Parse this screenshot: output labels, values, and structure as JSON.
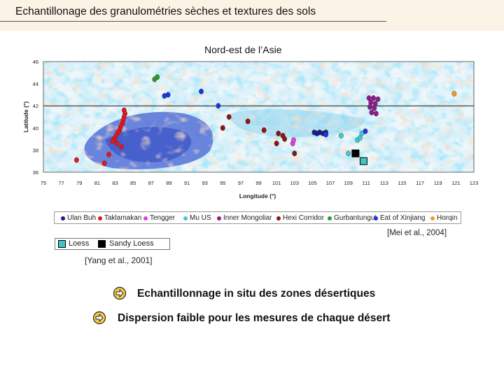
{
  "slide": {
    "title": "Echantillonage des granulométries sèches et textures des sols",
    "map_title": "Nord-est de l’Asie",
    "citation_mei": "[Mei et al., 2004]",
    "citation_yang": "[Yang et al., 2001]",
    "bullets": [
      "Echantillonnage in situ des zones désertiques",
      "Dispersion faible pour les mesures de chaque désert"
    ]
  },
  "chart_data": {
    "type": "scatter",
    "title": "Nord-est de l’Asie",
    "xlabel": "Longitude (°)",
    "ylabel": "Latitude (°)",
    "xlim": [
      75,
      123
    ],
    "ylim": [
      36,
      46
    ],
    "xticks": [
      "75",
      "77",
      "79",
      "81",
      "83",
      "85",
      "87",
      "89",
      "91",
      "93",
      "95",
      "97",
      "99",
      "101",
      "103",
      "105",
      "107",
      "109",
      "111",
      "113",
      "115",
      "117",
      "119",
      "121",
      "123"
    ],
    "yticks": [
      "36",
      "38",
      "40",
      "42",
      "44",
      "46"
    ],
    "reference_line_lat": 42,
    "background": "soil texture map",
    "series": [
      {
        "name": "Ulan Buh",
        "color": "#1a1a8c",
        "points": [
          [
            105.2,
            39.6
          ],
          [
            105.5,
            39.5
          ],
          [
            105.8,
            39.6
          ],
          [
            106.2,
            39.5
          ],
          [
            106.5,
            39.6
          ]
        ]
      },
      {
        "name": "Taklamakan",
        "color": "#e8141e",
        "points": [
          [
            84.0,
            41.6
          ],
          [
            84.1,
            41.3
          ],
          [
            84.0,
            41.0
          ],
          [
            83.9,
            40.7
          ],
          [
            83.8,
            40.4
          ],
          [
            83.6,
            40.1
          ],
          [
            83.5,
            39.8
          ],
          [
            83.3,
            39.6
          ],
          [
            83.1,
            39.3
          ],
          [
            82.9,
            39.0
          ],
          [
            82.7,
            38.8
          ],
          [
            83.2,
            38.6
          ],
          [
            83.7,
            38.3
          ],
          [
            82.3,
            37.6
          ],
          [
            81.8,
            36.8
          ],
          [
            78.7,
            37.1
          ]
        ]
      },
      {
        "name": "Tengger",
        "color": "#e040e0",
        "points": [
          [
            102.8,
            38.6
          ],
          [
            102.9,
            38.9
          ]
        ]
      },
      {
        "name": "Mu US",
        "color": "#40c8d8",
        "points": [
          [
            108.2,
            39.3
          ],
          [
            110.0,
            38.9
          ],
          [
            110.3,
            39.1
          ],
          [
            110.5,
            39.5
          ],
          [
            109.0,
            37.7
          ]
        ]
      },
      {
        "name": "Inner Mongoliar",
        "color": "#8c1a8c",
        "points": [
          [
            111.3,
            42.7
          ],
          [
            111.8,
            42.7
          ],
          [
            112.3,
            42.6
          ],
          [
            111.5,
            42.3
          ],
          [
            112.0,
            42.2
          ],
          [
            111.4,
            41.9
          ],
          [
            111.9,
            41.8
          ],
          [
            111.6,
            41.4
          ],
          [
            112.1,
            41.3
          ]
        ]
      },
      {
        "name": "Hexi Corridor",
        "color": "#8c1414",
        "points": [
          [
            95.0,
            40.0
          ],
          [
            95.7,
            41.0
          ],
          [
            97.8,
            40.6
          ],
          [
            99.6,
            39.8
          ],
          [
            101.2,
            39.5
          ],
          [
            101.7,
            39.3
          ],
          [
            101.9,
            39.0
          ],
          [
            103.0,
            37.7
          ],
          [
            101.0,
            38.6
          ]
        ]
      },
      {
        "name": "Gurbantungut",
        "color": "#2e9a2e",
        "points": [
          [
            87.4,
            44.4
          ],
          [
            87.7,
            44.6
          ]
        ]
      },
      {
        "name": "Eat of Xinjiang",
        "color": "#2233dd",
        "points": [
          [
            88.5,
            42.9
          ],
          [
            88.9,
            43.0
          ],
          [
            92.6,
            43.3
          ],
          [
            94.5,
            42.0
          ],
          [
            106.5,
            39.4
          ],
          [
            110.9,
            39.7
          ]
        ]
      },
      {
        "name": "Horqin",
        "color": "#f09830",
        "points": [
          [
            120.8,
            43.1
          ]
        ]
      }
    ],
    "loess_series": [
      {
        "name": "Loess",
        "color": "#3ec6c6",
        "points": [
          [
            110.7,
            37.0
          ]
        ]
      },
      {
        "name": "Sandy Loess",
        "color": "#000000",
        "points": [
          [
            109.8,
            37.7
          ]
        ]
      }
    ]
  }
}
